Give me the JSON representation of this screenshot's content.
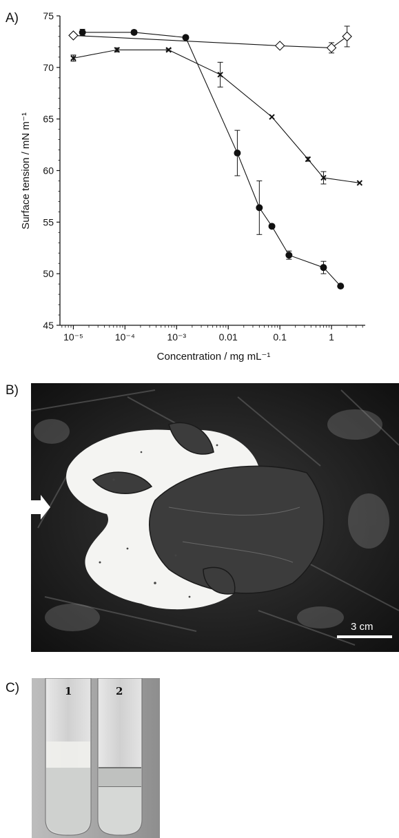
{
  "panels": {
    "a_label": "A)",
    "b_label": "B)",
    "c_label": "C)"
  },
  "photo_b": {
    "scale_bar_text": "3 cm"
  },
  "photo_c": {
    "tube1_label": "1",
    "tube2_label": "2"
  },
  "chart_data": {
    "type": "line",
    "xlabel": "Concentration / mg mL⁻¹",
    "ylabel": "Surface tension / mN m⁻¹",
    "x_scale": "log",
    "xlim": [
      5.5e-06,
      4.5
    ],
    "ylim": [
      45,
      75
    ],
    "y_ticks": [
      45,
      50,
      55,
      60,
      65,
      70,
      75
    ],
    "x_ticks": [
      1e-05,
      0.0001,
      0.001,
      0.01,
      0.1,
      1
    ],
    "x_tick_labels": [
      "10⁻⁵",
      "10⁻⁴",
      "10⁻³",
      "0.01",
      "0.1",
      "1"
    ],
    "grid": false,
    "series": [
      {
        "marker": "filled-circle",
        "x": [
          1.5e-05,
          0.00015,
          0.0015,
          0.015,
          0.04,
          0.07,
          0.15,
          0.7,
          1.5
        ],
        "y": [
          73.4,
          73.4,
          72.9,
          61.7,
          56.4,
          54.6,
          51.8,
          50.6,
          48.8
        ],
        "err": [
          0.3,
          0.2,
          0.2,
          2.2,
          2.6,
          0,
          0.4,
          0.6,
          0
        ]
      },
      {
        "marker": "cross",
        "x": [
          1e-05,
          7e-05,
          0.0007,
          0.007,
          0.07,
          0.35,
          0.7,
          3.5
        ],
        "y": [
          70.9,
          71.7,
          71.7,
          69.3,
          65.2,
          61.1,
          59.3,
          58.8
        ],
        "err": [
          0.3,
          0.2,
          0.1,
          1.2,
          0,
          0.2,
          0.6,
          0
        ]
      },
      {
        "marker": "open-diamond",
        "x": [
          1e-05,
          0.1,
          1,
          2
        ],
        "y": [
          73.1,
          72.1,
          71.9,
          73.0
        ],
        "err": [
          0,
          0,
          0.5,
          1.0
        ]
      }
    ]
  },
  "colors": {
    "ink": "#111111",
    "foam": "#f4f4f2",
    "litter_dark": "#1c1c1c"
  }
}
